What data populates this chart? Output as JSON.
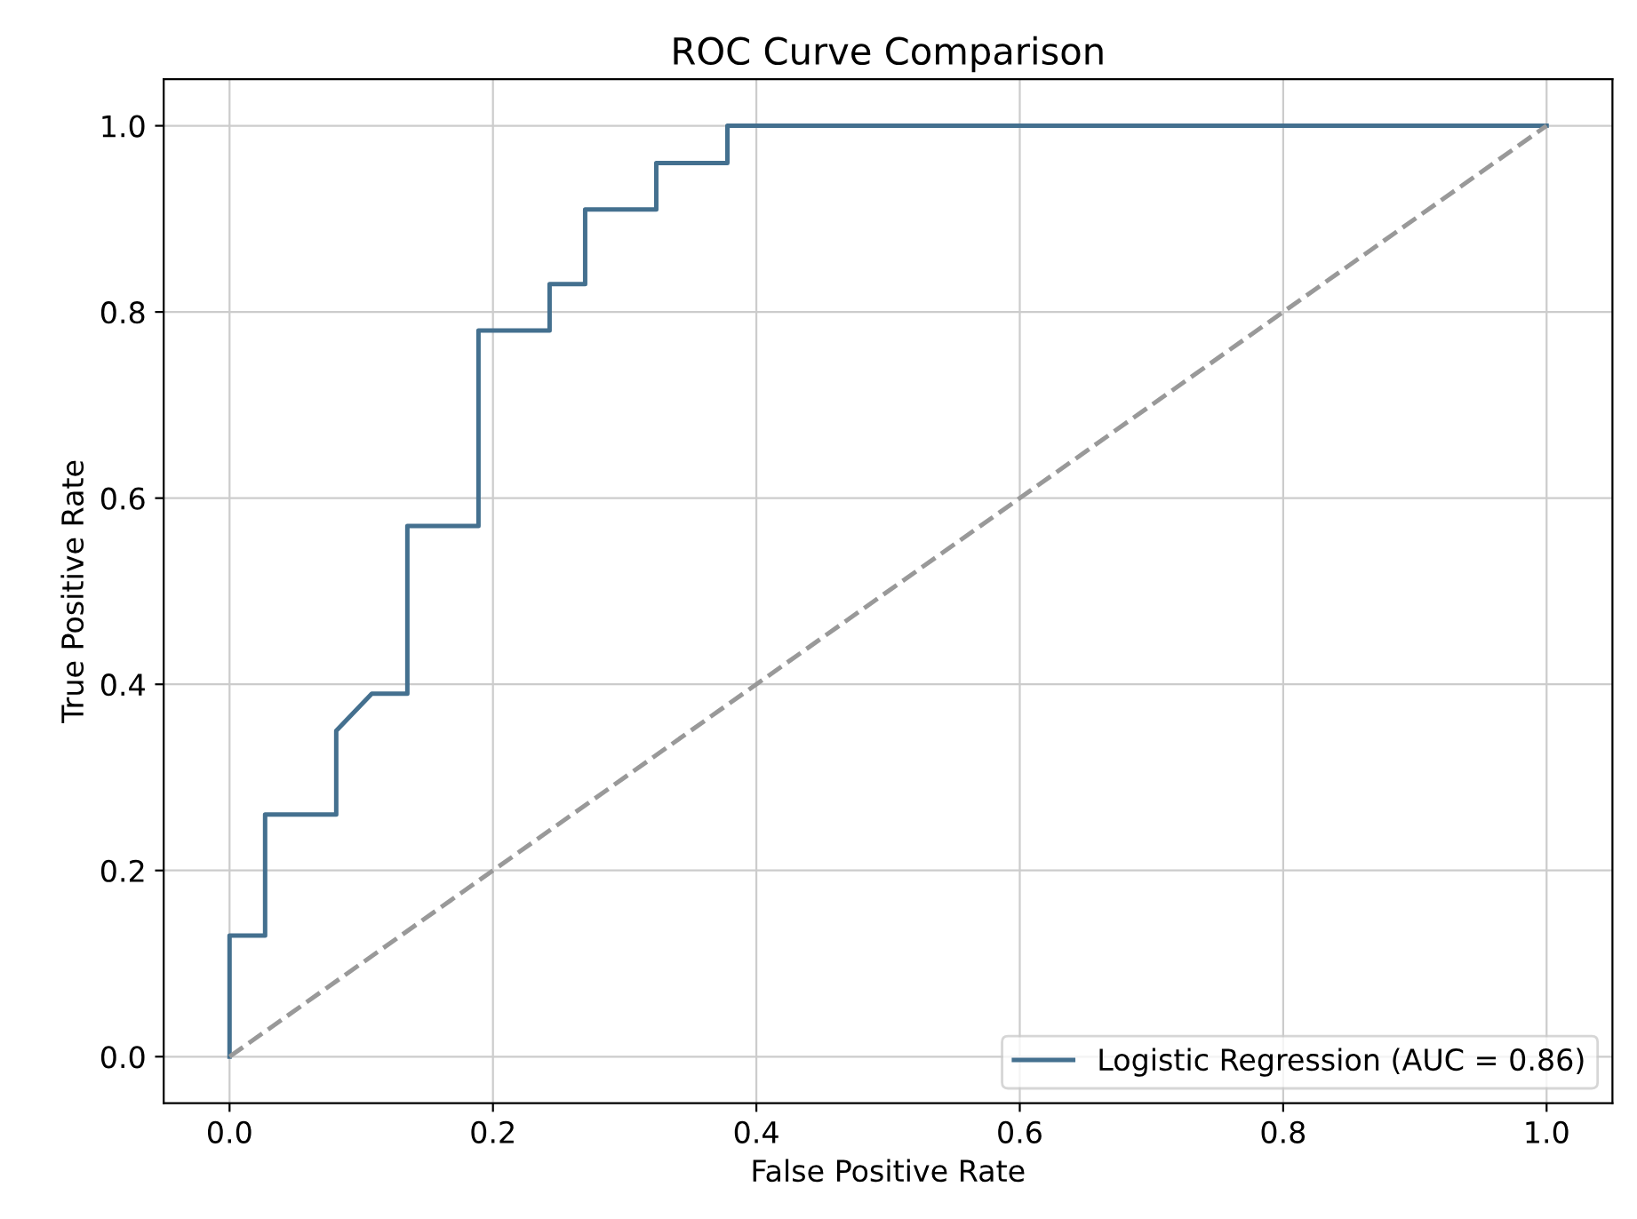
{
  "chart_data": {
    "type": "line",
    "title": "ROC Curve Comparison",
    "xlabel": "False Positive Rate",
    "ylabel": "True Positive Rate",
    "series": [
      {
        "name": "Logistic Regression (AUC = 0.86)",
        "color": "#44708f",
        "line_style": "solid",
        "x": [
          0,
          0,
          0.027,
          0.027,
          0.081,
          0.081,
          0.108,
          0.135,
          0.135,
          0.189,
          0.189,
          0.243,
          0.243,
          0.27,
          0.27,
          0.324,
          0.324,
          0.378,
          0.378,
          1.0
        ],
        "values": [
          0,
          0.13,
          0.13,
          0.26,
          0.26,
          0.35,
          0.39,
          0.39,
          0.57,
          0.57,
          0.78,
          0.78,
          0.83,
          0.83,
          0.91,
          0.91,
          0.96,
          0.96,
          1.0,
          1.0
        ]
      },
      {
        "color": "#999999",
        "line_style": "dashed",
        "x": [
          0,
          1
        ],
        "values": [
          0,
          1
        ]
      }
    ],
    "xlim": [
      -0.05,
      1.05
    ],
    "ylim": [
      -0.05,
      1.05
    ],
    "xticks": [
      {
        "value": 0,
        "label": "0.0"
      },
      0.2,
      0.4,
      0.6,
      0.8,
      {
        "value": 1,
        "label": "1.0"
      }
    ],
    "yticks": [
      {
        "value": 0,
        "label": "0.0"
      },
      0.2,
      0.4,
      0.6,
      0.8,
      {
        "value": 1,
        "label": "1.0"
      }
    ],
    "grid": true,
    "legend": "bottom right"
  }
}
